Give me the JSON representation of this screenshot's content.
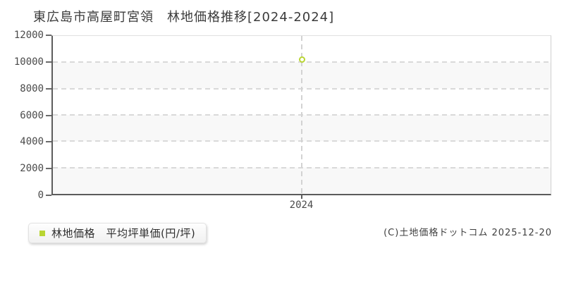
{
  "title": "東広島市高屋町宮領　林地価格推移[2024-2024]",
  "legend": {
    "label": "林地価格　平均坪単価(円/坪)"
  },
  "footer": {
    "copyright": "(C)土地価格ドットコム 2025-12-20"
  },
  "chart_data": {
    "type": "scatter",
    "title": "東広島市高屋町宮領　林地価格推移[2024-2024]",
    "x": [
      2024
    ],
    "x_ticks": [
      "2024"
    ],
    "y_ticks": [
      0,
      2000,
      4000,
      6000,
      8000,
      10000,
      12000
    ],
    "ylim": [
      0,
      12000
    ],
    "series": [
      {
        "name": "林地価格 平均坪単価(円/坪)",
        "marker": "open-circle",
        "color": "#b9d532",
        "values": [
          10200
        ]
      }
    ],
    "grid": "horizontal dashed lines at each y tick; vertical dashed line at each x tick",
    "plot_band_colors": [
      "#ffffff",
      "#f8f8f8"
    ],
    "legend_position": "bottom-left-outside"
  }
}
